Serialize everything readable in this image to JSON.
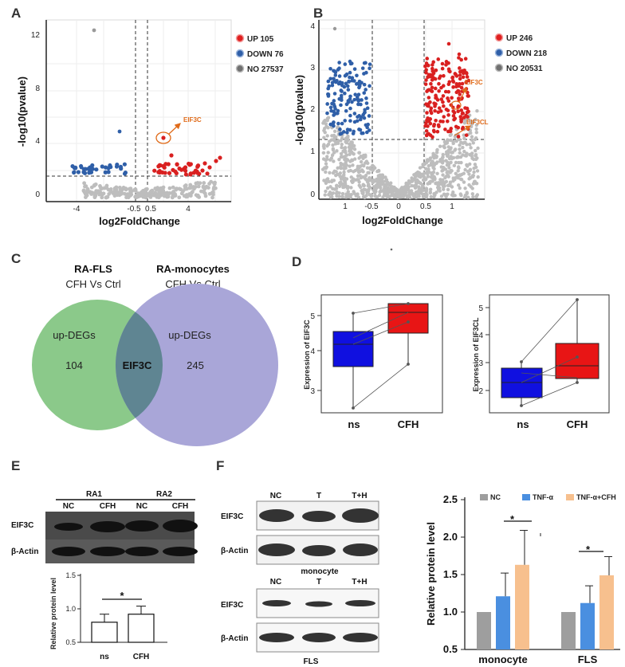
{
  "panel_labels": {
    "a": "A",
    "b": "B",
    "c": "C",
    "d": "D",
    "e": "E",
    "f": "F"
  },
  "volcano_a": {
    "legend": [
      "UP 105",
      "DOWN 76",
      "NO 27537"
    ],
    "xlabel": "log2FoldChange",
    "ylabel": "-log10(pvalue)",
    "xticks": [
      "-4",
      "-0.5",
      "0.5",
      "4"
    ],
    "yticks": [
      "0",
      "4",
      "8",
      "12"
    ],
    "annotation": "EIF3C"
  },
  "volcano_b": {
    "legend": [
      "UP 246",
      "DOWN 218",
      "NO 20531"
    ],
    "xlabel": "log2FoldChange",
    "ylabel": "-log10(pvalue)",
    "xticks": [
      "1",
      "-0.5",
      "0",
      "0.5",
      "1"
    ],
    "yticks": [
      "0",
      "1",
      "2",
      "3",
      "4"
    ],
    "annotation_1": "EIF3C",
    "annotation_2": "EIF3CL"
  },
  "venn": {
    "left_title": "RA-FLS",
    "left_sub": "CFH Vs Ctrl",
    "right_title": "RA-monocytes",
    "right_sub": "CFH Vs Ctrl",
    "left_label": "up-DEGs",
    "right_label": "up-DEGs",
    "left_count": "104",
    "overlap": "EIF3C",
    "right_count": "245",
    "colors": {
      "left": "#8bc98a",
      "right": "#a9a6d8"
    }
  },
  "box_d": {
    "left_ylabel": "Expression of  EIF3C",
    "right_ylabel": "Expression of  EIF3CL",
    "left_yticks": [
      "3",
      "4",
      "5"
    ],
    "right_yticks": [
      "2",
      "3",
      "4",
      "5"
    ],
    "groups": [
      "ns",
      "CFH"
    ],
    "colors": {
      "ns": "#1010e0",
      "cfh": "#e81515"
    }
  },
  "blot_e": {
    "groups": [
      "RA1",
      "RA2"
    ],
    "lanes": [
      "NC",
      "CFH",
      "NC",
      "CFH"
    ],
    "rows": [
      "EIF3C",
      "β-Actin"
    ]
  },
  "blot_f": {
    "lanes": [
      "NC",
      "T",
      "T+H"
    ],
    "rows": [
      "EIF3C",
      "β-Actin"
    ],
    "monocyte_label": "monocyte",
    "fls_label": "FLS"
  },
  "chart_data": [
    {
      "type": "bar",
      "title": "",
      "categories": [
        "ns",
        "CFH"
      ],
      "values": [
        0.8,
        0.92
      ],
      "errors": [
        0.12,
        0.12
      ],
      "ylabel": "Relative protein level",
      "yticks": [
        "0.5",
        "1.0",
        "1.5"
      ],
      "ylim": [
        0.5,
        1.5
      ],
      "significance": "*"
    },
    {
      "type": "bar",
      "title": "",
      "categories": [
        "monocyte",
        "FLS"
      ],
      "series": [
        {
          "name": "NC",
          "values": [
            1.0,
            1.0
          ],
          "errors": [
            0,
            0
          ],
          "color": "#9e9e9e"
        },
        {
          "name": "TNF-α",
          "values": [
            1.21,
            1.12
          ],
          "errors": [
            0.31,
            0.23
          ],
          "color": "#4a8fe0"
        },
        {
          "name": "TNF-α+CFH",
          "values": [
            1.63,
            1.49
          ],
          "errors": [
            0.46,
            0.25
          ],
          "color": "#f7c08e"
        }
      ],
      "ylabel": "Relative protein level",
      "yticks": [
        "0.5",
        "1.0",
        "1.5",
        "2.0",
        "2.5"
      ],
      "ylim": [
        0.5,
        2.5
      ],
      "significance": [
        "*",
        "*"
      ]
    }
  ]
}
